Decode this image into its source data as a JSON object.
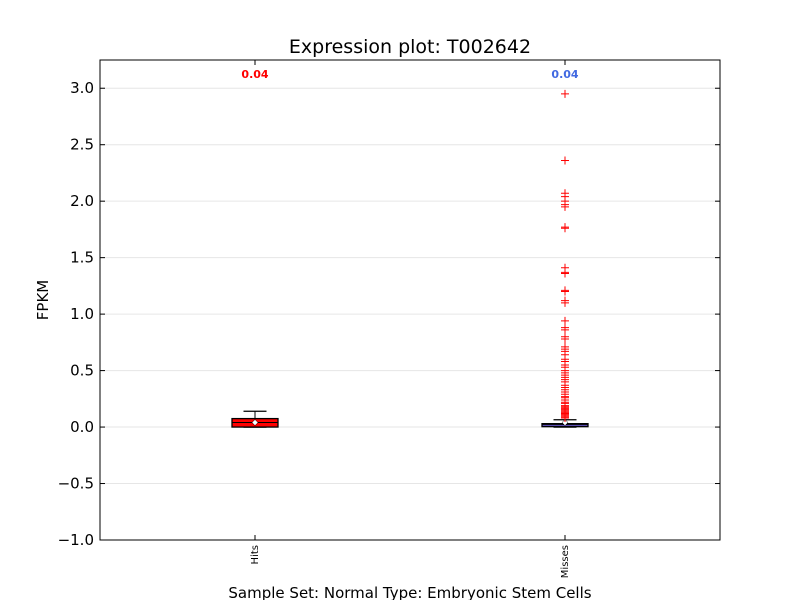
{
  "chart_data": {
    "type": "box",
    "title": "Expression plot: T002642",
    "xlabel": "Sample Set: Normal Type: Embryonic Stem Cells",
    "ylabel": "FPKM",
    "ylim": [
      -1.0,
      3.25
    ],
    "yticks": [
      -1.0,
      -0.5,
      0.0,
      0.5,
      1.0,
      1.5,
      2.0,
      2.5,
      3.0
    ],
    "ytick_labels": [
      "−1.0",
      "−0.5",
      "0.0",
      "0.5",
      "1.0",
      "1.5",
      "2.0",
      "2.5",
      "3.0"
    ],
    "grid": "horizontal",
    "categories": [
      "Hits",
      "Misses"
    ],
    "boxes": [
      {
        "category": "Hits",
        "annotation": "0.04",
        "annotation_color": "#ff0000",
        "box_color": "#ff0000",
        "whisker_low": 0.0,
        "q1": 0.0,
        "median": 0.04,
        "q3": 0.075,
        "whisker_high": 0.14,
        "mean": 0.04,
        "outliers": []
      },
      {
        "category": "Misses",
        "annotation": "0.04",
        "annotation_color": "#4169e1",
        "box_color": "#7b68ee",
        "whisker_low": 0.0,
        "q1": 0.005,
        "median": 0.02,
        "q3": 0.03,
        "whisker_high": 0.065,
        "mean": 0.04,
        "outliers": [
          2.95,
          2.36,
          2.07,
          2.04,
          2.0,
          1.97,
          1.95,
          1.77,
          1.76,
          1.41,
          1.37,
          1.36,
          1.21,
          1.2,
          1.12,
          1.1,
          0.94,
          0.88,
          0.86,
          0.8,
          0.78,
          0.71,
          0.69,
          0.67,
          0.64,
          0.6,
          0.58,
          0.55,
          0.53,
          0.5,
          0.48,
          0.46,
          0.44,
          0.42,
          0.4,
          0.37,
          0.35,
          0.33,
          0.31,
          0.29,
          0.27,
          0.26,
          0.24,
          0.22,
          0.21,
          0.19,
          0.18,
          0.17,
          0.16,
          0.15,
          0.14,
          0.13,
          0.12,
          0.11,
          0.1,
          0.09,
          0.08
        ]
      }
    ]
  }
}
